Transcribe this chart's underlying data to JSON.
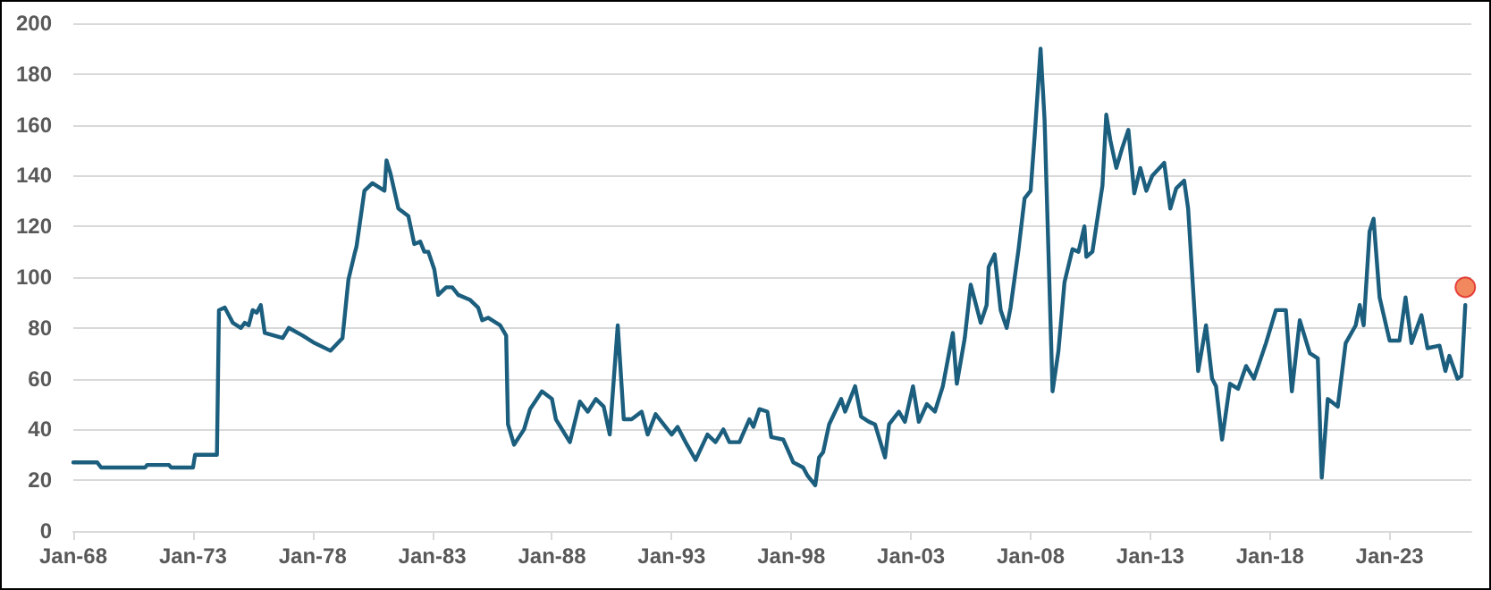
{
  "chart_data": {
    "type": "line",
    "grid": "y",
    "marker": "none",
    "line_style": "solid",
    "xlim": [
      "1968-01",
      "2026-06"
    ],
    "xticks": [
      {
        "value": "1968-01",
        "label": "Jan-68"
      },
      {
        "value": "1973-01",
        "label": "Jan-73"
      },
      {
        "value": "1978-01",
        "label": "Jan-78"
      },
      {
        "value": "1983-01",
        "label": "Jan-83"
      },
      {
        "value": "1988-01",
        "label": "Jan-88"
      },
      {
        "value": "1993-01",
        "label": "Jan-93"
      },
      {
        "value": "1998-01",
        "label": "Jan-98"
      },
      {
        "value": "2003-01",
        "label": "Jan-03"
      },
      {
        "value": "2008-01",
        "label": "Jan-08"
      },
      {
        "value": "2013-01",
        "label": "Jan-13"
      },
      {
        "value": "2018-01",
        "label": "Jan-18"
      },
      {
        "value": "2023-01",
        "label": "Jan-23"
      }
    ],
    "ylim": [
      0,
      200
    ],
    "yticks": [
      0,
      20,
      40,
      60,
      80,
      100,
      120,
      140,
      160,
      180,
      200
    ],
    "series": [
      {
        "color": "#1b5e7e",
        "x": [
          "1968-01",
          "1969-01",
          "1969-03",
          "1971-01",
          "1971-02",
          "1972-01",
          "1972-02",
          "1973-01",
          "1973-02",
          "1974-01",
          "1974-02",
          "1974-05",
          "1974-09",
          "1975-01",
          "1975-03",
          "1975-05",
          "1975-07",
          "1975-09",
          "1975-11",
          "1976-01",
          "1976-10",
          "1977-01",
          "1977-08",
          "1978-02",
          "1978-10",
          "1979-04",
          "1979-07",
          "1979-10",
          "1979-11",
          "1980-03",
          "1980-07",
          "1981-01",
          "1981-02",
          "1981-04",
          "1981-08",
          "1982-01",
          "1982-04",
          "1982-07",
          "1982-09",
          "1982-11",
          "1983-02",
          "1983-04",
          "1983-08",
          "1983-11",
          "1984-02",
          "1984-08",
          "1984-12",
          "1985-02",
          "1985-05",
          "1985-11",
          "1986-02",
          "1986-03",
          "1986-06",
          "1986-11",
          "1987-02",
          "1987-08",
          "1988-01",
          "1988-03",
          "1988-10",
          "1989-03",
          "1989-07",
          "1989-11",
          "1990-03",
          "1990-06",
          "1990-10",
          "1991-01",
          "1991-05",
          "1991-10",
          "1992-01",
          "1992-05",
          "1993-01",
          "1993-04",
          "1993-08",
          "1994-01",
          "1994-07",
          "1994-11",
          "1995-03",
          "1995-06",
          "1995-11",
          "1996-04",
          "1996-06",
          "1996-09",
          "1997-01",
          "1997-03",
          "1997-09",
          "1998-02",
          "1998-07",
          "1998-09",
          "1999-01",
          "1999-03",
          "1999-05",
          "1999-08",
          "2000-02",
          "2000-04",
          "2000-09",
          "2000-12",
          "2001-04",
          "2001-07",
          "2001-12",
          "2002-02",
          "2002-07",
          "2002-10",
          "2003-02",
          "2003-05",
          "2003-09",
          "2004-01",
          "2004-05",
          "2004-10",
          "2004-12",
          "2005-04",
          "2005-07",
          "2005-09",
          "2005-12",
          "2006-03",
          "2006-04",
          "2006-07",
          "2006-10",
          "2007-01",
          "2007-03",
          "2007-07",
          "2007-10",
          "2008-01",
          "2008-03",
          "2008-06",
          "2008-08",
          "2008-12",
          "2009-03",
          "2009-06",
          "2009-10",
          "2010-01",
          "2010-04",
          "2010-05",
          "2010-08",
          "2011-01",
          "2011-03",
          "2011-05",
          "2011-08",
          "2011-11",
          "2012-02",
          "2012-05",
          "2012-08",
          "2012-11",
          "2013-02",
          "2013-08",
          "2013-11",
          "2014-02",
          "2014-06",
          "2014-08",
          "2015-01",
          "2015-05",
          "2015-08",
          "2015-10",
          "2016-01",
          "2016-05",
          "2016-09",
          "2017-01",
          "2017-05",
          "2017-11",
          "2018-04",
          "2018-09",
          "2018-12",
          "2019-04",
          "2019-09",
          "2020-01",
          "2020-03",
          "2020-06",
          "2020-11",
          "2021-03",
          "2021-08",
          "2021-10",
          "2021-12",
          "2022-03",
          "2022-05",
          "2022-08",
          "2023-01",
          "2023-06",
          "2023-09",
          "2023-12",
          "2024-05",
          "2024-08",
          "2025-02",
          "2025-05",
          "2025-07",
          "2025-11",
          "2026-01",
          "2026-03"
        ],
        "values": [
          27,
          27,
          25,
          25,
          26,
          26,
          25,
          25,
          30,
          30,
          87,
          88,
          82,
          80,
          82,
          81,
          87,
          86,
          89,
          78,
          76,
          80,
          77,
          74,
          71,
          76,
          99,
          109,
          112,
          134,
          137,
          134,
          146,
          141,
          127,
          124,
          113,
          114,
          110,
          110,
          103,
          93,
          96,
          96,
          93,
          91,
          88,
          83,
          84,
          81,
          77,
          42,
          34,
          40,
          48,
          55,
          52,
          44,
          35,
          51,
          47,
          52,
          49,
          38,
          81,
          44,
          44,
          47,
          38,
          46,
          38,
          41,
          35,
          28,
          38,
          35,
          40,
          35,
          35,
          44,
          41,
          48,
          47,
          37,
          36,
          27,
          25,
          22,
          18,
          29,
          31,
          42,
          52,
          47,
          57,
          45,
          43,
          42,
          29,
          42,
          47,
          43,
          57,
          43,
          50,
          47,
          57,
          78,
          58,
          76,
          97,
          91,
          82,
          89,
          104,
          109,
          87,
          80,
          88,
          111,
          131,
          134,
          155,
          190,
          162,
          55,
          71,
          98,
          111,
          110,
          120,
          108,
          110,
          136,
          164,
          154,
          143,
          151,
          158,
          133,
          143,
          134,
          140,
          145,
          127,
          135,
          138,
          127,
          63,
          81,
          60,
          57,
          36,
          58,
          56,
          65,
          60,
          74,
          87,
          87,
          55,
          83,
          70,
          68,
          21,
          52,
          49,
          74,
          81,
          89,
          81,
          118,
          123,
          92,
          75,
          75,
          92,
          74,
          85,
          72,
          73,
          63,
          69,
          60,
          61,
          89
        ]
      },
      {
        "type": "scatter",
        "color": "#ef6a35",
        "marker": "circle",
        "x": [
          "2026-03"
        ],
        "values": [
          96
        ]
      }
    ]
  }
}
